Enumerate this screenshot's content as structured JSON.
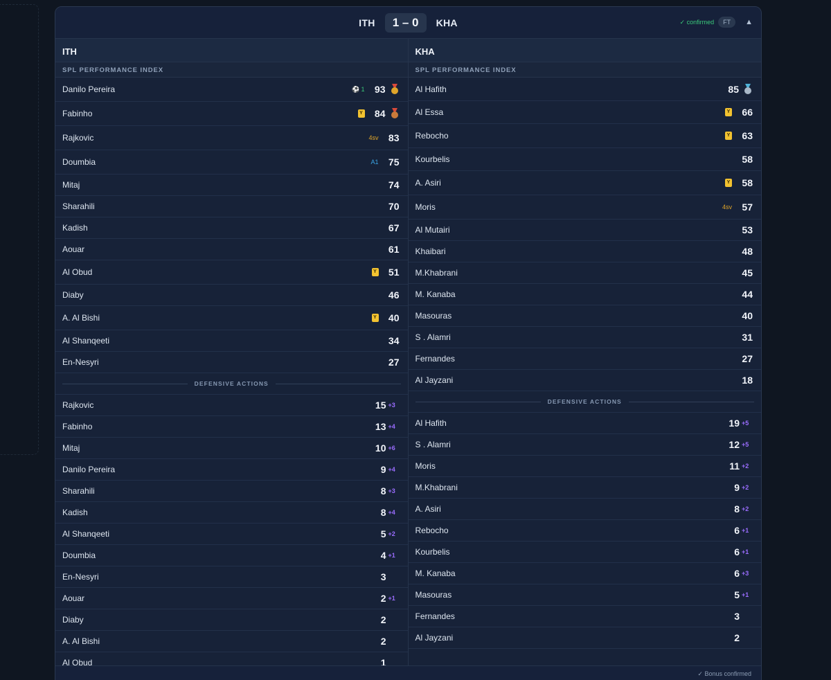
{
  "match": {
    "home": "ITH",
    "away": "KHA",
    "score": "1 – 0",
    "status": "✓ confirmed",
    "ft": "FT",
    "collapse_icon": "▲"
  },
  "home": {
    "name": "ITH",
    "spl_title": "SPL PERFORMANCE INDEX",
    "spl": [
      {
        "name": "Danilo Pereira",
        "val": "93",
        "goal": "1",
        "medal": "gold"
      },
      {
        "name": "Fabinho",
        "val": "84",
        "yellow": true,
        "medal": "bronze"
      },
      {
        "name": "Rajkovic",
        "val": "83",
        "sv": "4sv"
      },
      {
        "name": "Doumbia",
        "val": "75",
        "assist": "A1"
      },
      {
        "name": "Mitaj",
        "val": "74"
      },
      {
        "name": "Sharahili",
        "val": "70"
      },
      {
        "name": "Kadish",
        "val": "67"
      },
      {
        "name": "Aouar",
        "val": "61"
      },
      {
        "name": "Al Obud",
        "val": "51",
        "yellow": true
      },
      {
        "name": "Diaby",
        "val": "46"
      },
      {
        "name": "A. Al Bishi",
        "val": "40",
        "yellow": true
      },
      {
        "name": "Al Shanqeeti",
        "val": "34"
      },
      {
        "name": "En-Nesyri",
        "val": "27"
      }
    ],
    "def_title": "DEFENSIVE ACTIONS",
    "def": [
      {
        "name": "Rajkovic",
        "val": "15",
        "bonus": "+3"
      },
      {
        "name": "Fabinho",
        "val": "13",
        "bonus": "+4"
      },
      {
        "name": "Mitaj",
        "val": "10",
        "bonus": "+6"
      },
      {
        "name": "Danilo Pereira",
        "val": "9",
        "bonus": "+4"
      },
      {
        "name": "Sharahili",
        "val": "8",
        "bonus": "+3"
      },
      {
        "name": "Kadish",
        "val": "8",
        "bonus": "+4"
      },
      {
        "name": "Al Shanqeeti",
        "val": "5",
        "bonus": "+2"
      },
      {
        "name": "Doumbia",
        "val": "4",
        "bonus": "+1"
      },
      {
        "name": "En-Nesyri",
        "val": "3"
      },
      {
        "name": "Aouar",
        "val": "2",
        "bonus": "+1"
      },
      {
        "name": "Diaby",
        "val": "2"
      },
      {
        "name": "A. Al Bishi",
        "val": "2"
      },
      {
        "name": "Al Obud",
        "val": "1"
      }
    ]
  },
  "away": {
    "name": "KHA",
    "spl_title": "SPL PERFORMANCE INDEX",
    "spl": [
      {
        "name": "Al Hafith",
        "val": "85",
        "medal": "silver"
      },
      {
        "name": "Al Essa",
        "val": "66",
        "yellow": true
      },
      {
        "name": "Rebocho",
        "val": "63",
        "yellow": true
      },
      {
        "name": "Kourbelis",
        "val": "58"
      },
      {
        "name": "A. Asiri",
        "val": "58",
        "yellow": true
      },
      {
        "name": "Moris",
        "val": "57",
        "sv": "4sv"
      },
      {
        "name": "Al Mutairi",
        "val": "53"
      },
      {
        "name": "Khaibari",
        "val": "48"
      },
      {
        "name": "M.Khabrani",
        "val": "45"
      },
      {
        "name": "M. Kanaba",
        "val": "44"
      },
      {
        "name": "Masouras",
        "val": "40"
      },
      {
        "name": "S . Alamri",
        "val": "31"
      },
      {
        "name": "Fernandes",
        "val": "27"
      },
      {
        "name": "Al Jayzani",
        "val": "18"
      }
    ],
    "def_title": "DEFENSIVE ACTIONS",
    "def": [
      {
        "name": "Al Hafith",
        "val": "19",
        "bonus": "+5"
      },
      {
        "name": "S . Alamri",
        "val": "12",
        "bonus": "+5"
      },
      {
        "name": "Moris",
        "val": "11",
        "bonus": "+2"
      },
      {
        "name": "M.Khabrani",
        "val": "9",
        "bonus": "+2"
      },
      {
        "name": "A. Asiri",
        "val": "8",
        "bonus": "+2"
      },
      {
        "name": "Rebocho",
        "val": "6",
        "bonus": "+1"
      },
      {
        "name": "Kourbelis",
        "val": "6",
        "bonus": "+1"
      },
      {
        "name": "M. Kanaba",
        "val": "6",
        "bonus": "+3"
      },
      {
        "name": "Masouras",
        "val": "5",
        "bonus": "+1"
      },
      {
        "name": "Fernandes",
        "val": "3"
      },
      {
        "name": "Al Jayzani",
        "val": "2"
      }
    ]
  },
  "footer": {
    "note": "✓ Bonus confirmed"
  },
  "icons": {
    "yellow_card": "Y",
    "goal": "⚽",
    "medal_colors": {
      "gold": "#e0a52a",
      "silver": "#a9b8c8",
      "bronze": "#c97a3a"
    }
  }
}
